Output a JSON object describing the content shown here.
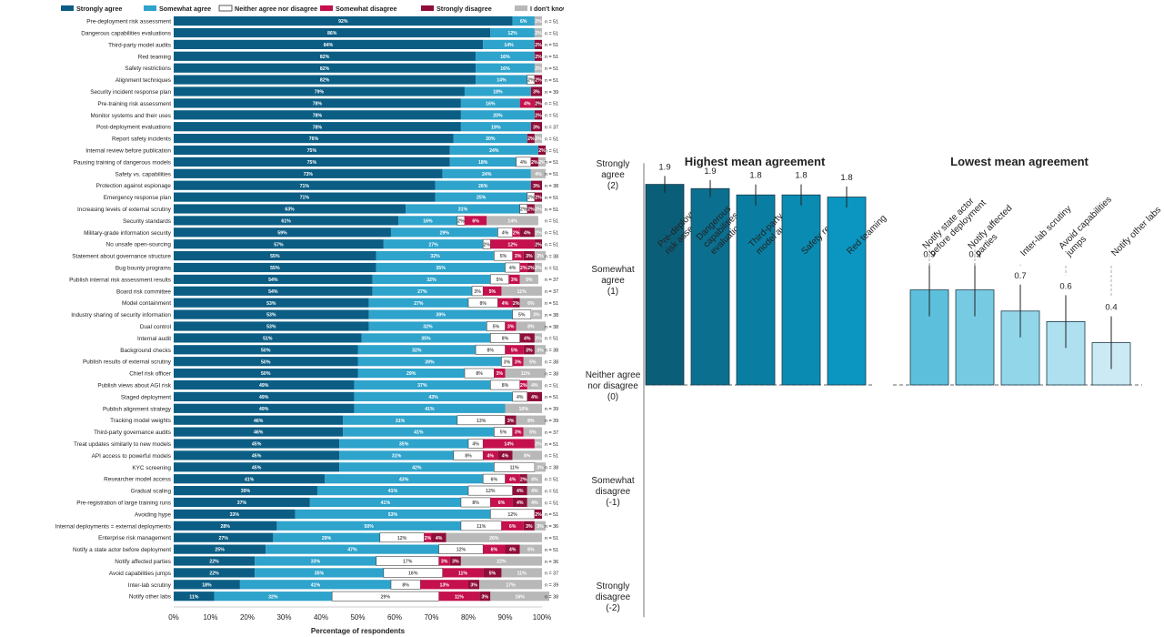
{
  "colors": {
    "strongly_agree": "#0b5d84",
    "somewhat_agree": "#2ea3cb",
    "neither": "#ffffff",
    "somewhat_disagree": "#c4104c",
    "strongly_disagree": "#8f0d39",
    "dont_know": "#b8b8b8",
    "high_bars": [
      "#0b5e78",
      "#0b6f8f",
      "#0a7ea2",
      "#0a8bb2",
      "#0a96c0"
    ],
    "low_bars": [
      "#5cc0dc",
      "#76cbe3",
      "#92d6ea",
      "#aee0ef",
      "#cbeaf4"
    ]
  },
  "chart_data": [
    {
      "type": "bar",
      "orientation": "horizontal-stacked",
      "title": "",
      "xlabel": "Percentage of respondents",
      "xlim": [
        0,
        100
      ],
      "xticks": [
        "0%",
        "10%",
        "20%",
        "30%",
        "40%",
        "50%",
        "60%",
        "70%",
        "80%",
        "90%",
        "100%"
      ],
      "legend_placement": "top",
      "series_names": [
        "Strongly agree",
        "Somewhat agree",
        "Neither agree nor disagree",
        "Somewhat disagree",
        "Strongly disagree",
        "I don't know"
      ],
      "rows": [
        {
          "label": "Pre-deployment risk assessment",
          "values": [
            92,
            6,
            0,
            0,
            0,
            2
          ],
          "n": "n = 51"
        },
        {
          "label": "Dangerous capabilities evaluations",
          "values": [
            86,
            12,
            0,
            0,
            0,
            2
          ],
          "n": "n = 51"
        },
        {
          "label": "Third-party model audits",
          "values": [
            84,
            14,
            0,
            0,
            2,
            0
          ],
          "n": "n = 51"
        },
        {
          "label": "Red teaming",
          "values": [
            82,
            16,
            0,
            0,
            2,
            0
          ],
          "n": "n = 51"
        },
        {
          "label": "Safety restrictions",
          "values": [
            82,
            16,
            0,
            0,
            0,
            2
          ],
          "n": "n = 51"
        },
        {
          "label": "Alignment techniques",
          "values": [
            82,
            14,
            2,
            0,
            2,
            0
          ],
          "n": "n = 51"
        },
        {
          "label": "Security incident response plan",
          "values": [
            79,
            18,
            0,
            0,
            3,
            0
          ],
          "n": "n = 39"
        },
        {
          "label": "Pre-training risk assessment",
          "values": [
            78,
            16,
            0,
            4,
            2,
            0
          ],
          "n": "n = 51"
        },
        {
          "label": "Monitor systems and their uses",
          "values": [
            78,
            20,
            0,
            0,
            2,
            0
          ],
          "n": "n = 51"
        },
        {
          "label": "Post-deployment evaluations",
          "values": [
            78,
            19,
            0,
            0,
            3,
            0
          ],
          "n": "n = 37"
        },
        {
          "label": "Report safety incidents",
          "values": [
            76,
            20,
            0,
            0,
            2,
            2
          ],
          "n": "n = 51"
        },
        {
          "label": "Internal review before publication",
          "values": [
            75,
            24,
            0,
            0,
            2,
            0
          ],
          "n": "n = 51"
        },
        {
          "label": "Pausing training of dangerous models",
          "values": [
            75,
            18,
            4,
            0,
            2,
            2
          ],
          "n": "n = 51"
        },
        {
          "label": "Safety vs. capabilities",
          "values": [
            73,
            24,
            0,
            0,
            0,
            4
          ],
          "n": "n = 51"
        },
        {
          "label": "Protection against espionage",
          "values": [
            71,
            26,
            0,
            0,
            3,
            0
          ],
          "n": "n = 38"
        },
        {
          "label": "Emergency response plan",
          "values": [
            71,
            25,
            2,
            0,
            2,
            0
          ],
          "n": "n = 51"
        },
        {
          "label": "Increasing levels of external scrutiny",
          "values": [
            63,
            31,
            2,
            0,
            2,
            2
          ],
          "n": "n = 51"
        },
        {
          "label": "Security standards",
          "values": [
            61,
            16,
            2,
            6,
            0,
            14
          ],
          "n": "n = 51"
        },
        {
          "label": "Military-grade information security",
          "values": [
            59,
            29,
            4,
            2,
            4,
            2
          ],
          "n": "n = 51"
        },
        {
          "label": "No unsafe open-sourcing",
          "values": [
            57,
            27,
            2,
            12,
            2,
            0
          ],
          "n": "n = 51"
        },
        {
          "label": "Statement about governance structure",
          "values": [
            55,
            32,
            5,
            3,
            3,
            3
          ],
          "n": "n = 38"
        },
        {
          "label": "Bug bounty programs",
          "values": [
            55,
            35,
            4,
            2,
            2,
            2
          ],
          "n": "n = 51"
        },
        {
          "label": "Publish internal risk assessment results",
          "values": [
            54,
            32,
            5,
            3,
            0,
            5
          ],
          "n": "n = 37"
        },
        {
          "label": "Board risk committee",
          "values": [
            54,
            27,
            3,
            5,
            0,
            11
          ],
          "n": "n = 37"
        },
        {
          "label": "Model containment",
          "values": [
            53,
            27,
            8,
            4,
            2,
            6
          ],
          "n": "n = 51"
        },
        {
          "label": "Industry sharing of security information",
          "values": [
            53,
            39,
            5,
            0,
            0,
            3
          ],
          "n": "n = 38"
        },
        {
          "label": "Dual control",
          "values": [
            53,
            32,
            5,
            3,
            0,
            8
          ],
          "n": "n = 38"
        },
        {
          "label": "Internal audit",
          "values": [
            51,
            35,
            8,
            0,
            4,
            2
          ],
          "n": "n = 51"
        },
        {
          "label": "Background checks",
          "values": [
            50,
            32,
            8,
            5,
            3,
            3
          ],
          "n": "n = 38"
        },
        {
          "label": "Publish results of external scrutiny",
          "values": [
            50,
            39,
            3,
            3,
            0,
            5
          ],
          "n": "n = 38"
        },
        {
          "label": "Chief risk officer",
          "values": [
            50,
            29,
            8,
            3,
            0,
            11
          ],
          "n": "n = 38"
        },
        {
          "label": "Publish views about AGI risk",
          "values": [
            49,
            37,
            8,
            2,
            0,
            4
          ],
          "n": "n = 51"
        },
        {
          "label": "Staged deployment",
          "values": [
            49,
            43,
            4,
            0,
            4,
            0
          ],
          "n": "n = 51"
        },
        {
          "label": "Publish alignment strategy",
          "values": [
            49,
            41,
            0,
            0,
            0,
            10
          ],
          "n": "n = 39"
        },
        {
          "label": "Tracking model weights",
          "values": [
            46,
            31,
            13,
            0,
            3,
            8
          ],
          "n": "n = 39"
        },
        {
          "label": "Third-party governance audits",
          "values": [
            46,
            41,
            5,
            3,
            0,
            5
          ],
          "n": "n = 37"
        },
        {
          "label": "Treat updates similarly to new models",
          "values": [
            45,
            35,
            4,
            14,
            0,
            2
          ],
          "n": "n = 51"
        },
        {
          "label": "API access to powerful models",
          "values": [
            45,
            31,
            8,
            4,
            4,
            8
          ],
          "n": "n = 51"
        },
        {
          "label": "KYC screening",
          "values": [
            45,
            42,
            11,
            0,
            0,
            3
          ],
          "n": "n = 38"
        },
        {
          "label": "Researcher model access",
          "values": [
            41,
            43,
            6,
            4,
            2,
            4
          ],
          "n": "n = 51"
        },
        {
          "label": "Gradual scaling",
          "values": [
            39,
            41,
            12,
            0,
            4,
            4
          ],
          "n": "n = 51"
        },
        {
          "label": "Pre-registration of large training runs",
          "values": [
            37,
            41,
            8,
            6,
            4,
            4
          ],
          "n": "n = 51"
        },
        {
          "label": "Avoiding hype",
          "values": [
            33,
            53,
            12,
            0,
            2,
            0
          ],
          "n": "n = 51"
        },
        {
          "label": "Internal deployments = external deployments",
          "values": [
            28,
            50,
            11,
            6,
            3,
            3
          ],
          "n": "n = 36"
        },
        {
          "label": "Enterprise risk management",
          "values": [
            27,
            29,
            12,
            2,
            4,
            26
          ],
          "n": "n = 51"
        },
        {
          "label": "Notify a state actor before deployment",
          "values": [
            25,
            47,
            12,
            6,
            4,
            6
          ],
          "n": "n = 51"
        },
        {
          "label": "Notify affected parties",
          "values": [
            22,
            33,
            17,
            3,
            3,
            22
          ],
          "n": "n = 36"
        },
        {
          "label": "Avoid capabilities jumps",
          "values": [
            22,
            35,
            16,
            11,
            5,
            11
          ],
          "n": "n = 37"
        },
        {
          "label": "Inter-lab scrutiny",
          "values": [
            18,
            41,
            8,
            13,
            3,
            17
          ],
          "n": "n = 39"
        },
        {
          "label": "Notify other labs",
          "values": [
            11,
            32,
            29,
            11,
            3,
            16
          ],
          "n": "n = 38"
        }
      ]
    },
    {
      "type": "bar",
      "title": "Highest mean agreement",
      "ylim": [
        -2,
        2
      ],
      "yticks": [
        {
          "value": 2,
          "lines": [
            "Strongly",
            "agree",
            "(2)"
          ]
        },
        {
          "value": 1,
          "lines": [
            "Somewhat",
            "agree",
            "(1)"
          ]
        },
        {
          "value": 0,
          "lines": [
            "Neither agree",
            "nor disagree",
            "(0)"
          ]
        },
        {
          "value": -1,
          "lines": [
            "Somewhat",
            "disagree",
            "(-1)"
          ]
        },
        {
          "value": -2,
          "lines": [
            "Strongly",
            "disagree",
            "(-2)"
          ]
        }
      ],
      "bars": [
        {
          "label_lines": [
            "Pre-deployment",
            "risk assessment"
          ],
          "value": 1.9,
          "display": "1.9",
          "err": 0.08
        },
        {
          "label_lines": [
            "Dangerous",
            "capabilities",
            "evaluations"
          ],
          "value": 1.86,
          "display": "1.9",
          "err": 0.08
        },
        {
          "label_lines": [
            "Third-party",
            "model audits"
          ],
          "value": 1.8,
          "display": "1.8",
          "err": 0.1
        },
        {
          "label_lines": [
            "Safety restrictions"
          ],
          "value": 1.8,
          "display": "1.8",
          "err": 0.1
        },
        {
          "label_lines": [
            "Red teaming"
          ],
          "value": 1.78,
          "display": "1.8",
          "err": 0.1
        }
      ]
    },
    {
      "type": "bar",
      "title": "Lowest mean agreement",
      "ylim": [
        -2,
        2
      ],
      "bars": [
        {
          "label_lines": [
            "Notify state actor",
            "before deployment"
          ],
          "value": 0.9,
          "display": "0.9",
          "err": 0.25
        },
        {
          "label_lines": [
            "Notify affected",
            "parties"
          ],
          "value": 0.9,
          "display": "0.9",
          "err": 0.25
        },
        {
          "label_lines": [
            "Inter-lab scrutiny"
          ],
          "value": 0.7,
          "display": "0.7",
          "err": 0.25
        },
        {
          "label_lines": [
            "Avoid capabilities",
            "jumps"
          ],
          "value": 0.6,
          "display": "0.6",
          "err": 0.25
        },
        {
          "label_lines": [
            "Notify other labs"
          ],
          "value": 0.4,
          "display": "0.4",
          "err": 0.25
        }
      ]
    }
  ]
}
